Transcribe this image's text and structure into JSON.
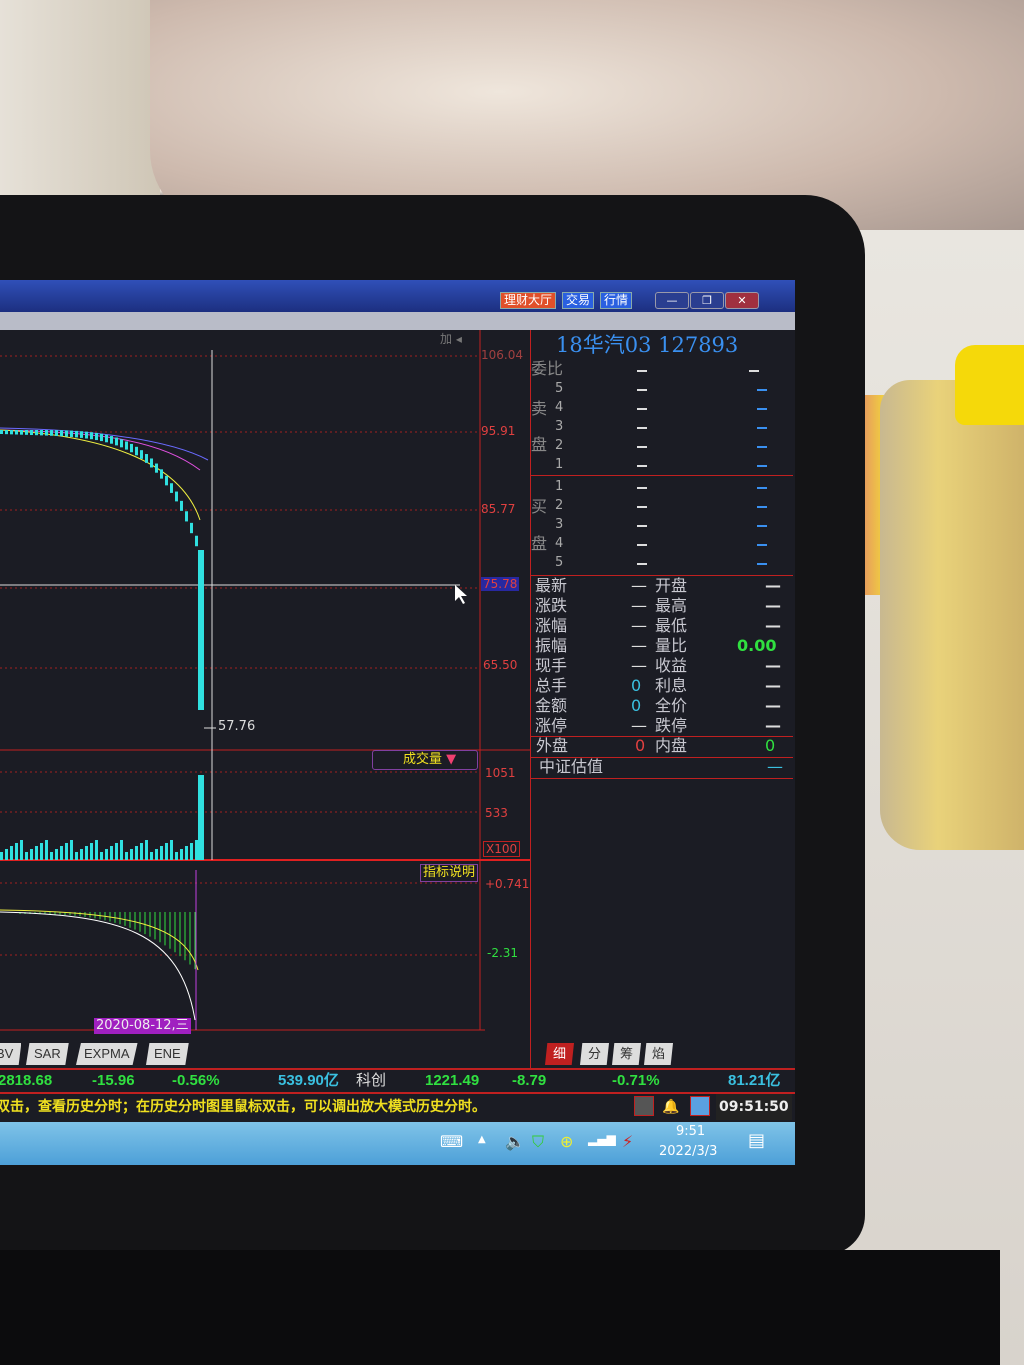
{
  "window": {
    "buttons": [
      "理财大厅",
      "交易",
      "行情"
    ],
    "minimize": "—",
    "restore": "❐",
    "close": "✕"
  },
  "chart": {
    "top_icons": "加 ◂",
    "price_axis": [
      "106.04",
      "95.91",
      "85.77",
      "75.78",
      "65.50"
    ],
    "crosshair_value": "75.78",
    "last_price_label": "57.76",
    "volume_selector": "成交量",
    "volume_axis": [
      "1051",
      "533"
    ],
    "volume_unit": "X100",
    "indicator_button": "指标说明",
    "indicator_axis": [
      "+0.741",
      "-2.31"
    ],
    "date_label": "2020-08-12,三"
  },
  "quote": {
    "title": "18华汽03 127893",
    "weibi_label": "委比",
    "sell_label": [
      "卖",
      "盘"
    ],
    "buy_label": [
      "买",
      "盘"
    ],
    "sell_levels": [
      "5",
      "4",
      "3",
      "2",
      "1"
    ],
    "buy_levels": [
      "1",
      "2",
      "3",
      "4",
      "5"
    ],
    "dash": "—",
    "left_fields": [
      {
        "label": "最新",
        "value": "—"
      },
      {
        "label": "涨跌",
        "value": "—"
      },
      {
        "label": "涨幅",
        "value": "—"
      },
      {
        "label": "振幅",
        "value": "—"
      },
      {
        "label": "现手",
        "value": "—"
      },
      {
        "label": "总手",
        "value": "0"
      },
      {
        "label": "金额",
        "value": "0"
      },
      {
        "label": "涨停",
        "value": "—"
      }
    ],
    "right_fields": [
      {
        "label": "开盘",
        "value": "—"
      },
      {
        "label": "最高",
        "value": "—"
      },
      {
        "label": "最低",
        "value": "—"
      },
      {
        "label": "量比",
        "value": "0.00"
      },
      {
        "label": "收益",
        "value": "—"
      },
      {
        "label": "利息",
        "value": "—"
      },
      {
        "label": "全价",
        "value": "—"
      },
      {
        "label": "跌停",
        "value": "—"
      }
    ],
    "outer_label": "外盘",
    "outer_value": "0",
    "inner_label": "内盘",
    "inner_value": "0",
    "csi_label": "中证估值",
    "csi_value": "—",
    "tabs": [
      "细",
      "分",
      "筹",
      "焰"
    ]
  },
  "indicator_tabs": [
    "BV",
    "SAR",
    "EXPMA",
    "ENE"
  ],
  "status_bar": {
    "index_value": "2818.68",
    "index_change": "-15.96",
    "index_pct": "-0.56%",
    "index_amount": "539.90亿",
    "board": "科创",
    "board_value": "1221.49",
    "board_change": "-8.79",
    "board_pct": "-0.71%",
    "board_amount": "81.21亿",
    "time": "09:51:50"
  },
  "ticker_text": "双击，查看历史分时；在历史分时图里鼠标双击，可以调出放大模式历史分时。",
  "taskbar": {
    "time": "9:51",
    "date": "2022/3/3"
  },
  "colors": {
    "up": "#e04040",
    "down": "#30e040",
    "blue": "#3a90f0",
    "grid": "#c02020"
  }
}
